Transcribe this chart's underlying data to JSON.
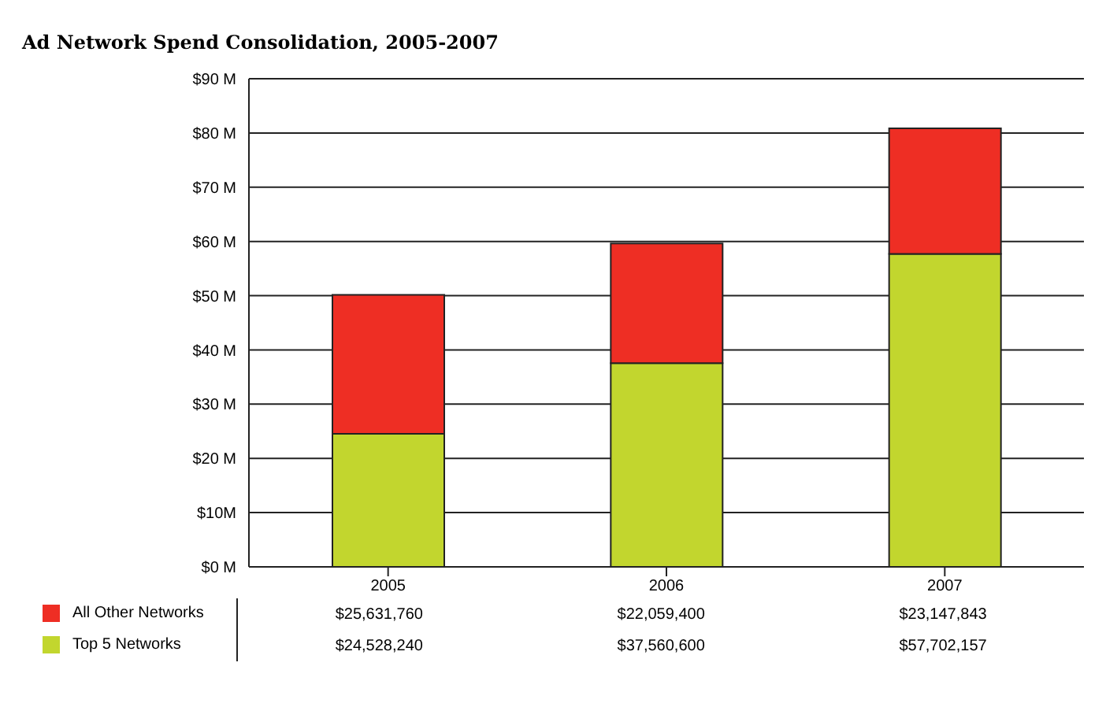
{
  "chart_data": {
    "type": "bar",
    "title": "Ad Network Spend Consolidation, 2005-2007",
    "categories": [
      "2005",
      "2006",
      "2007"
    ],
    "stacked": true,
    "series": [
      {
        "name": "Top 5 Networks",
        "color": "#c2d62e",
        "values": [
          24528240,
          37560600,
          57702157
        ],
        "value_labels": [
          "$24,528,240",
          "$37,560,600",
          "$57,702,157"
        ]
      },
      {
        "name": "All Other Networks",
        "color": "#ee2e24",
        "values": [
          25631760,
          22059400,
          23147843
        ],
        "value_labels": [
          "$25,631,760",
          "$22,059,400",
          "$23,147,843"
        ]
      }
    ],
    "ylim": [
      0,
      90000000
    ],
    "yticks": [
      {
        "value": 0,
        "label": "$0 M"
      },
      {
        "value": 10000000,
        "label": "$10M"
      },
      {
        "value": 20000000,
        "label": "$20 M"
      },
      {
        "value": 30000000,
        "label": "$30 M"
      },
      {
        "value": 40000000,
        "label": "$40 M"
      },
      {
        "value": 50000000,
        "label": "$50 M"
      },
      {
        "value": 60000000,
        "label": "$60 M"
      },
      {
        "value": 70000000,
        "label": "$70 M"
      },
      {
        "value": 80000000,
        "label": "$80 M"
      },
      {
        "value": 90000000,
        "label": "$90 M"
      }
    ],
    "grid": "y",
    "legend": "bottom"
  }
}
